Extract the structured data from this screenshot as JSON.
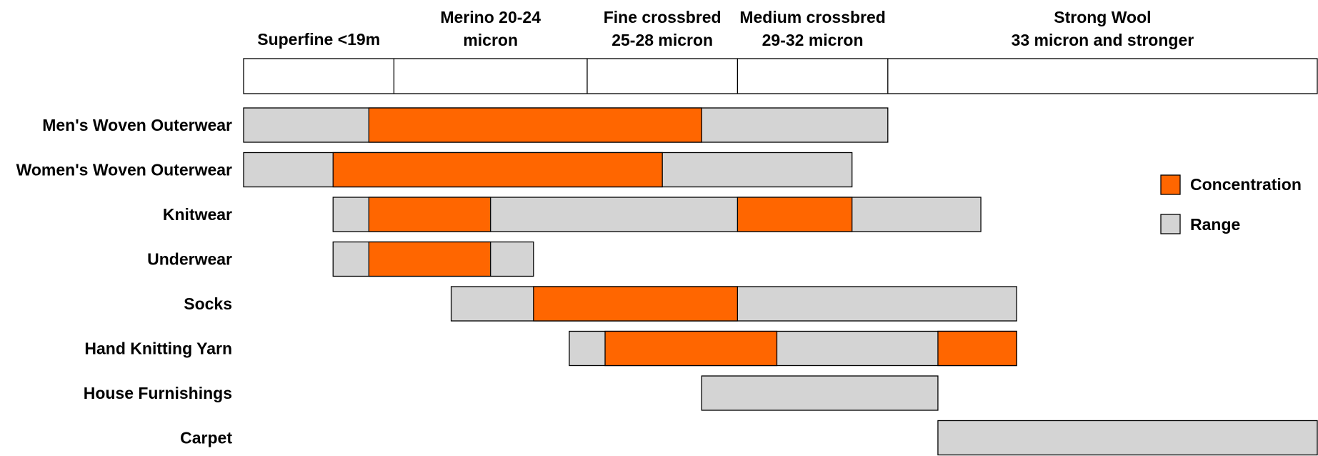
{
  "chart_data": {
    "type": "bar",
    "subtype": "horizontal-range",
    "x_axis_unit": "micron",
    "xlim": [
      15,
      45
    ],
    "micron_bands": [
      {
        "lines": [
          "Superfine <19m"
        ],
        "from": 15,
        "to": 19.2
      },
      {
        "lines": [
          "Merino 20-24",
          "micron"
        ],
        "from": 19.2,
        "to": 24.6
      },
      {
        "lines": [
          "Fine crossbred",
          "25-28 micron"
        ],
        "from": 24.6,
        "to": 28.8
      },
      {
        "lines": [
          "Medium crossbred",
          "29-32 micron"
        ],
        "from": 28.8,
        "to": 33
      },
      {
        "lines": [
          "Strong Wool",
          "33 micron and stronger"
        ],
        "from": 33,
        "to": 45
      }
    ],
    "categories": [
      "Men's Woven Outerwear",
      "Women's Woven Outerwear",
      "Knitwear",
      "Underwear",
      "Socks",
      "Hand Knitting Yarn",
      "House Furnishings",
      "Carpet"
    ],
    "series": [
      {
        "name": "Range",
        "color": "#d4d4d4",
        "values": [
          [
            [
              15,
              33
            ]
          ],
          [
            [
              15,
              32
            ]
          ],
          [
            [
              17.5,
              35.6
            ]
          ],
          [
            [
              17.5,
              23.1
            ]
          ],
          [
            [
              20.8,
              36.6
            ]
          ],
          [
            [
              24.1,
              36.6
            ]
          ],
          [
            [
              27.8,
              34.4
            ]
          ],
          [
            [
              34.4,
              45
            ]
          ]
        ]
      },
      {
        "name": "Concentration",
        "color": "#ff6600",
        "values": [
          [
            [
              18.5,
              27.8
            ]
          ],
          [
            [
              17.5,
              26.7
            ]
          ],
          [
            [
              18.5,
              21.9
            ],
            [
              28.8,
              32
            ]
          ],
          [
            [
              18.5,
              21.9
            ]
          ],
          [
            [
              23.1,
              28.8
            ]
          ],
          [
            [
              25.1,
              29.9
            ],
            [
              34.4,
              36.6
            ]
          ],
          [],
          []
        ]
      }
    ],
    "legend": {
      "position": "right",
      "items": [
        {
          "label": "Concentration",
          "color": "#ff6600"
        },
        {
          "label": "Range",
          "color": "#d4d4d4"
        }
      ]
    },
    "grid": false
  }
}
